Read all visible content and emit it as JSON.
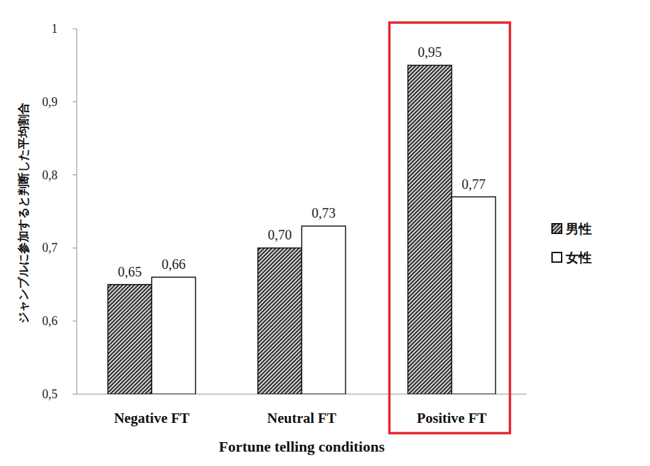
{
  "chart_data": {
    "type": "bar",
    "x_label": "Fortune telling conditions",
    "y_label": "ジャンブルに参加すると判断した平均割合",
    "categories": [
      "Negative FT",
      "Neutral FT",
      "Positive FT"
    ],
    "series": [
      {
        "name": "男性",
        "color": "#2b2b2b",
        "values": [
          0.65,
          0.7,
          0.95
        ],
        "value_labels": [
          "0,65",
          "0,70",
          "0,95"
        ]
      },
      {
        "name": "女性",
        "color": "#ffffff",
        "values": [
          0.66,
          0.73,
          0.77
        ],
        "value_labels": [
          "0,66",
          "0,73",
          "0,77"
        ]
      }
    ],
    "ylim": [
      0.5,
      1
    ],
    "yticks": [
      {
        "value": 0.5,
        "label": "0,5"
      },
      {
        "value": 0.6,
        "label": "0,6"
      },
      {
        "value": 0.7,
        "label": "0,7"
      },
      {
        "value": 0.8,
        "label": "0,8"
      },
      {
        "value": 0.9,
        "label": "0,9"
      },
      1
    ],
    "grid": false,
    "data_labels": true,
    "legend": "right"
  }
}
